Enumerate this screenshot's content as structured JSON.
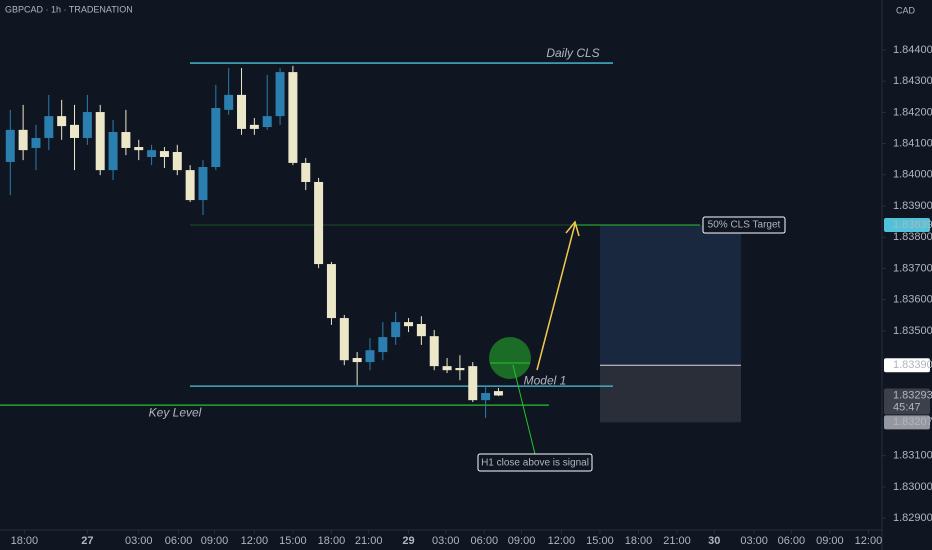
{
  "chart_data": {
    "type": "candlestick",
    "title": "GBPCAD · 1h · TRADENATION",
    "currency": "CAD",
    "x": [
      0.8,
      1.8,
      2.8,
      3.8,
      4.8,
      5.8,
      6.8,
      7.8,
      8.8,
      9.8,
      10.8,
      11.8,
      12.8,
      13.8,
      14.8,
      15.8,
      16.8,
      17.8,
      18.8,
      19.8,
      20.8,
      21.8,
      22.8,
      23.8,
      24.8,
      25.8,
      26.8,
      27.8,
      28.8,
      29.8,
      30.8,
      31.8,
      32.8,
      33.8,
      34.8,
      35.8,
      36.8,
      37.8,
      38.8
    ],
    "open": [
      1.84041,
      1.84144,
      1.84086,
      1.84118,
      1.84188,
      1.8416,
      1.84118,
      1.84201,
      1.84015,
      1.84137,
      1.84089,
      1.84057,
      1.84076,
      1.84073,
      1.84015,
      1.83919,
      1.84025,
      1.84208,
      1.84256,
      1.8416,
      1.84153,
      1.84188,
      1.84329,
      1.84038,
      1.83977,
      1.83714,
      1.83541,
      1.83413,
      1.834,
      1.83432,
      1.8348,
      1.83528,
      1.83522,
      1.83483,
      1.83387,
      1.83381,
      1.83387,
      1.83278,
      1.83307
    ],
    "high": [
      1.84208,
      1.84224,
      1.8416,
      1.84256,
      1.8424,
      1.84224,
      1.84256,
      1.84224,
      1.84176,
      1.84208,
      1.84112,
      1.84096,
      1.84089,
      1.84096,
      1.84031,
      1.84047,
      1.84288,
      1.84342,
      1.84342,
      1.84182,
      1.8432,
      1.84342,
      1.84349,
      1.84054,
      1.8399,
      1.83721,
      1.83551,
      1.83432,
      1.83477,
      1.83528,
      1.8356,
      1.83541,
      1.83547,
      1.83503,
      1.83413,
      1.83422,
      1.834,
      1.83326,
      1.83317
    ],
    "low": [
      1.83935,
      1.84047,
      1.84015,
      1.84079,
      1.84112,
      1.84015,
      1.84096,
      1.83999,
      1.83983,
      1.84063,
      1.84047,
      1.84031,
      1.84022,
      1.83999,
      1.83913,
      1.83871,
      1.84015,
      1.84192,
      1.84128,
      1.84128,
      1.84144,
      1.8416,
      1.84031,
      1.83951,
      1.83701,
      1.83519,
      1.8339,
      1.83326,
      1.83374,
      1.83406,
      1.83455,
      1.83496,
      1.83455,
      1.83374,
      1.83365,
      1.83342,
      1.83272,
      1.83221,
      1.83291
    ],
    "close": [
      1.84144,
      1.84079,
      1.84118,
      1.84188,
      1.84156,
      1.84118,
      1.84201,
      1.84015,
      1.84137,
      1.84086,
      1.84079,
      1.84079,
      1.84057,
      1.84015,
      1.83919,
      1.84025,
      1.84214,
      1.84256,
      1.84147,
      1.84147,
      1.84188,
      1.84329,
      1.84038,
      1.83977,
      1.83714,
      1.83541,
      1.83406,
      1.834,
      1.83438,
      1.8348,
      1.83528,
      1.83515,
      1.83483,
      1.83387,
      1.83374,
      1.83374,
      1.83278,
      1.83301,
      1.83293
    ],
    "up_color": "#2a7fae",
    "down_color": "#ece7c8",
    "xlim": [
      0,
      68.5
    ],
    "xticks": [
      {
        "value": 1.9,
        "label": "18:00"
      },
      {
        "value": 6.8,
        "label": "27"
      },
      {
        "value": 10.8,
        "label": "03:00"
      },
      {
        "value": 13.9,
        "label": "06:00"
      },
      {
        "value": 16.7,
        "label": "09:00"
      },
      {
        "value": 19.8,
        "label": "12:00"
      },
      {
        "value": 22.8,
        "label": "15:00"
      },
      {
        "value": 25.8,
        "label": "18:00"
      },
      {
        "value": 28.7,
        "label": "21:00"
      },
      {
        "value": 31.8,
        "label": "29"
      },
      {
        "value": 34.7,
        "label": "03:00"
      },
      {
        "value": 37.7,
        "label": "06:00"
      },
      {
        "value": 40.6,
        "label": "09:00"
      },
      {
        "value": 43.7,
        "label": "12:00"
      },
      {
        "value": 46.7,
        "label": "15:00"
      },
      {
        "value": 49.7,
        "label": "18:00"
      },
      {
        "value": 52.7,
        "label": "21:00"
      },
      {
        "value": 55.6,
        "label": "30"
      },
      {
        "value": 58.7,
        "label": "03:00"
      },
      {
        "value": 61.6,
        "label": "06:00"
      },
      {
        "value": 64.6,
        "label": "09:00"
      },
      {
        "value": 67.6,
        "label": "12:00"
      }
    ],
    "ylim": [
      1.82862,
      1.8456
    ],
    "yticks": [
      {
        "value": 1.844,
        "label": "1.84400"
      },
      {
        "value": 1.843,
        "label": "1.84300"
      },
      {
        "value": 1.842,
        "label": "1.84200"
      },
      {
        "value": 1.841,
        "label": "1.84100"
      },
      {
        "value": 1.84,
        "label": "1.84000"
      },
      {
        "value": 1.839,
        "label": "1.83900"
      },
      {
        "value": 1.838,
        "label": "1.83800"
      },
      {
        "value": 1.837,
        "label": "1.83700"
      },
      {
        "value": 1.836,
        "label": "1.83600"
      },
      {
        "value": 1.835,
        "label": "1.83500"
      },
      {
        "value": 1.831,
        "label": "1.83100"
      },
      {
        "value": 1.83,
        "label": "1.83000"
      },
      {
        "value": 1.829,
        "label": "1.82900"
      }
    ],
    "levels": [
      {
        "name": "Daily CLS",
        "value": 1.84358,
        "color": "#4fc3d9"
      },
      {
        "name": "Model 1",
        "value": 1.83323,
        "color": "#4fc3d9"
      },
      {
        "name": "Key Level",
        "value": 1.83262,
        "color": "#27c22d"
      }
    ],
    "target": {
      "name": "50% CLS Target",
      "value": 1.83839,
      "color": "#27c22d"
    },
    "entry": {
      "value": 1.8339,
      "label": "1.83390"
    },
    "stop": 1.83207,
    "last": {
      "value": 1.83293,
      "countdown": "45:47"
    },
    "note": "H1 close above is signal"
  }
}
